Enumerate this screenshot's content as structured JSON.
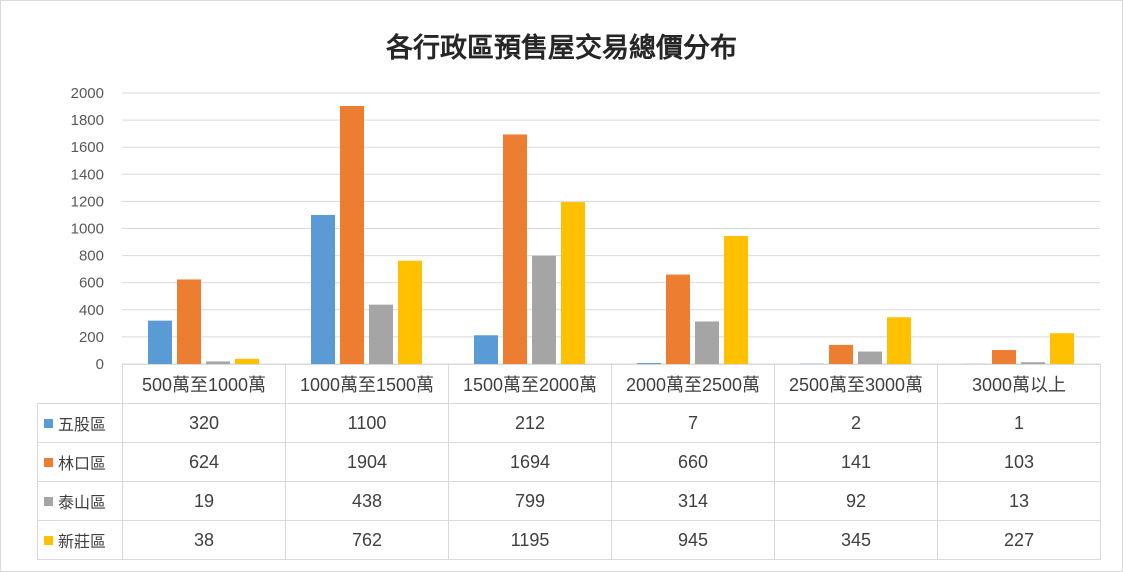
{
  "chart_data": {
    "type": "bar",
    "title": "各行政區預售屋交易總價分布",
    "categories": [
      "500萬至1000萬",
      "1000萬至1500萬",
      "1500萬至2000萬",
      "2000萬至2500萬",
      "2500萬至3000萬",
      "3000萬以上"
    ],
    "series": [
      {
        "name": "五股區",
        "color": "#5b9bd5",
        "values": [
          320,
          1100,
          212,
          7,
          2,
          1
        ]
      },
      {
        "name": "林口區",
        "color": "#ed7d31",
        "values": [
          624,
          1904,
          1694,
          660,
          141,
          103
        ]
      },
      {
        "name": "泰山區",
        "color": "#a5a5a5",
        "values": [
          19,
          438,
          799,
          314,
          92,
          13
        ]
      },
      {
        "name": "新莊區",
        "color": "#ffc000",
        "values": [
          38,
          762,
          1195,
          945,
          345,
          227
        ]
      }
    ],
    "ylim": [
      0,
      2000
    ],
    "yticks": [
      0,
      200,
      400,
      600,
      800,
      1000,
      1200,
      1400,
      1600,
      1800,
      2000
    ],
    "grid": true,
    "legend": "data-table"
  }
}
